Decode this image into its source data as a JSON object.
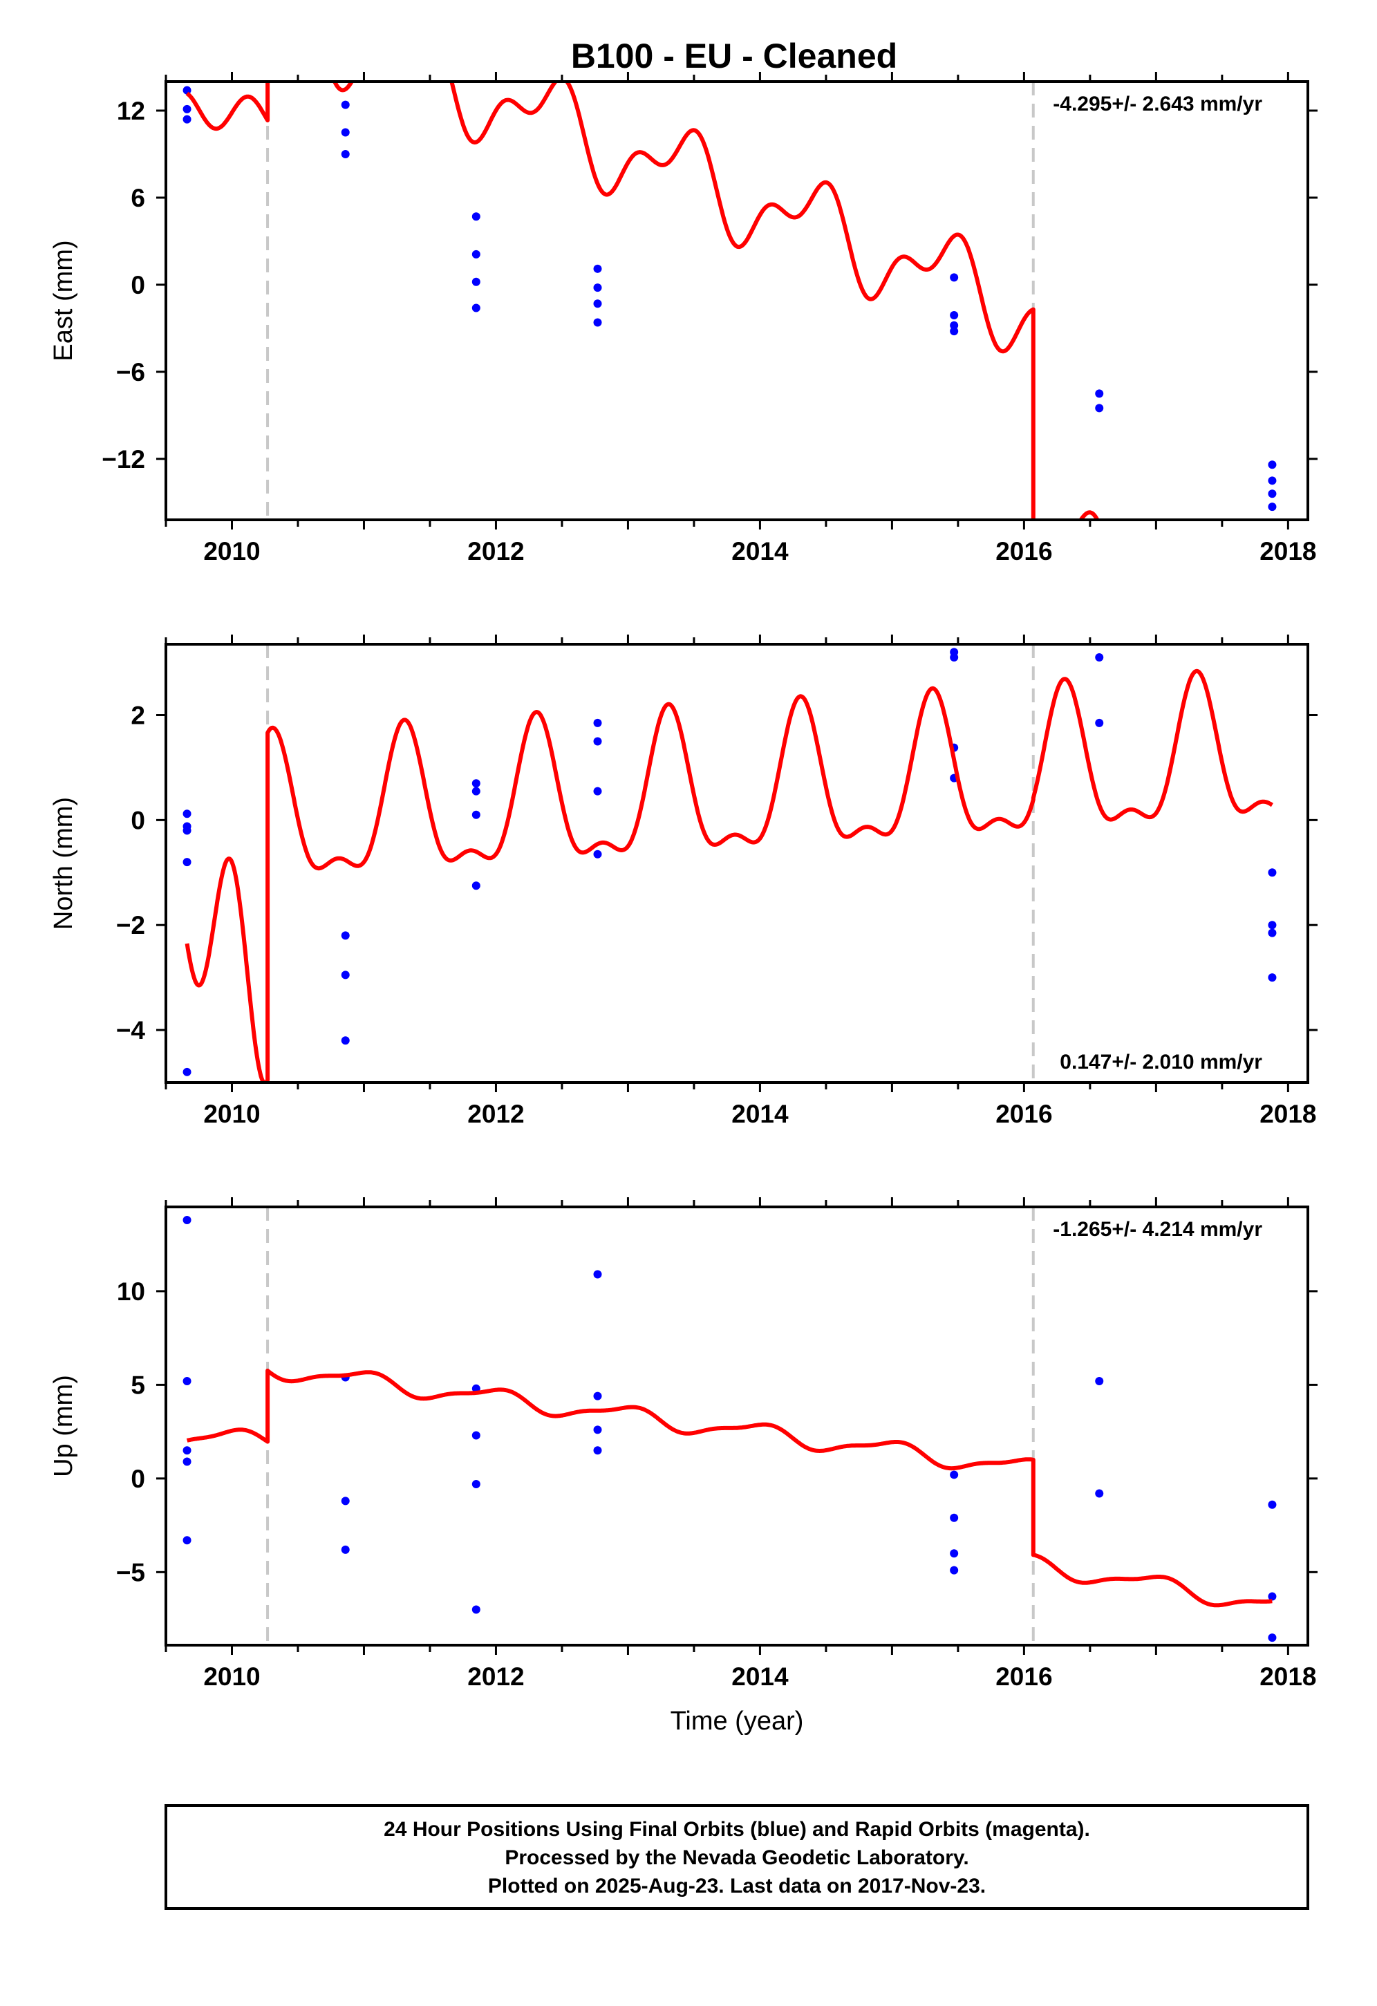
{
  "title": "B100  - EU - Cleaned",
  "caption": {
    "lines": [
      "24 Hour Positions Using Final Orbits (blue) and Rapid Orbits (magenta).",
      "Processed by the Nevada Geodetic Laboratory.",
      "Plotted on 2025-Aug-23. Last data on 2017-Nov-23."
    ]
  },
  "colors": {
    "model": "#ff0000",
    "final_orbits": "#0000ff",
    "event_line": "#c8c8c8",
    "frame": "#000000"
  },
  "chart_data": [
    {
      "type": "scatter",
      "ylabel": "East (mm)",
      "xlabel": "",
      "rate": "-4.295+/- 2.643 mm/yr",
      "rate_position": "top-right",
      "xlim": [
        2009.5,
        2018.15
      ],
      "ylim": [
        -16.2,
        14.0
      ],
      "x_ticks": [
        2010,
        2012,
        2014,
        2016,
        2018
      ],
      "x_tick_labels": [
        "2010",
        "2012",
        "2014",
        "2016",
        "2018"
      ],
      "y_ticks": [
        12,
        6,
        0,
        -6,
        -12
      ],
      "y_tick_labels": [
        "12",
        "6",
        "0",
        "−6",
        "−12"
      ],
      "grid": false,
      "event_lines": [
        2010.27,
        2016.07
      ],
      "points": [
        [
          2009.66,
          13.4
        ],
        [
          2009.66,
          12.1
        ],
        [
          2009.66,
          11.4
        ],
        [
          2010.86,
          12.4
        ],
        [
          2010.86,
          10.5
        ],
        [
          2010.86,
          9.0
        ],
        [
          2011.85,
          4.7
        ],
        [
          2011.85,
          2.1
        ],
        [
          2011.85,
          0.2
        ],
        [
          2011.85,
          -1.6
        ],
        [
          2012.77,
          1.1
        ],
        [
          2012.77,
          -0.2
        ],
        [
          2012.77,
          -1.3
        ],
        [
          2012.77,
          -2.6
        ],
        [
          2015.47,
          0.5
        ],
        [
          2015.47,
          -2.1
        ],
        [
          2015.47,
          -2.8
        ],
        [
          2015.47,
          -3.2
        ],
        [
          2016.57,
          -7.5
        ],
        [
          2016.57,
          -8.5
        ],
        [
          2017.88,
          -12.4
        ],
        [
          2017.88,
          -13.5
        ],
        [
          2017.88,
          -14.4
        ],
        [
          2017.88,
          -15.3
        ]
      ],
      "model": {
        "segments": [
          {
            "t0": 2009.66,
            "t1": 2010.27,
            "a": 11.86,
            "b": 0,
            "s1": -0.22,
            "c1": 0.0,
            "s2": 1.26,
            "c2": 0.0
          },
          {
            "t0": 2010.27,
            "t1": 2016.07,
            "a": 9.14,
            "b": -3.6,
            "s1": 1.3,
            "c1": -2.02,
            "s2": 0.86,
            "c2": 1.29
          },
          {
            "t0": 2016.07,
            "t1": 2017.88,
            "a": -6.4,
            "b": -3.6,
            "s1": 1.3,
            "c1": -2.02,
            "s2": 0.86,
            "c2": 1.29
          }
        ]
      }
    },
    {
      "type": "scatter",
      "ylabel": "North (mm)",
      "xlabel": "",
      "rate": "0.147+/- 2.010 mm/yr",
      "rate_position": "bottom-right",
      "xlim": [
        2009.5,
        2018.15
      ],
      "ylim": [
        -5.0,
        3.35
      ],
      "x_ticks": [
        2010,
        2012,
        2014,
        2016,
        2018
      ],
      "x_tick_labels": [
        "2010",
        "2012",
        "2014",
        "2016",
        "2018"
      ],
      "y_ticks": [
        2,
        0,
        -2,
        -4
      ],
      "y_tick_labels": [
        "2",
        "0",
        "−2",
        "−4"
      ],
      "grid": false,
      "event_lines": [
        2010.27,
        2016.07
      ],
      "points": [
        [
          2009.66,
          0.12
        ],
        [
          2009.66,
          -0.12
        ],
        [
          2009.66,
          -0.2
        ],
        [
          2009.66,
          -0.8
        ],
        [
          2009.66,
          -4.8
        ],
        [
          2010.86,
          -2.2
        ],
        [
          2010.86,
          -2.95
        ],
        [
          2010.86,
          -4.2
        ],
        [
          2011.85,
          0.7
        ],
        [
          2011.85,
          0.55
        ],
        [
          2011.85,
          0.1
        ],
        [
          2011.85,
          -1.25
        ],
        [
          2012.77,
          1.85
        ],
        [
          2012.77,
          1.5
        ],
        [
          2012.77,
          0.55
        ],
        [
          2012.77,
          -0.65
        ],
        [
          2015.47,
          3.2
        ],
        [
          2015.47,
          3.1
        ],
        [
          2015.47,
          1.38
        ],
        [
          2015.47,
          0.8
        ],
        [
          2016.57,
          3.1
        ],
        [
          2016.57,
          1.85
        ],
        [
          2017.88,
          -1.0
        ],
        [
          2017.88,
          -2.0
        ],
        [
          2017.88,
          -2.15
        ],
        [
          2017.88,
          -3.0
        ]
      ],
      "model": {
        "segments": [
          {
            "t0": 2009.66,
            "t1": 2010.27,
            "a": -2.44,
            "b": 0,
            "s1": -0.93,
            "c1": 0.0,
            "s2": 0.0,
            "c2": 1.64
          },
          {
            "t0": 2010.27,
            "t1": 2016.07,
            "a": 0.35,
            "b": 0.15,
            "s1": 1.2,
            "c1": -0.45,
            "s2": -0.35,
            "c2": -0.4
          },
          {
            "t0": 2016.07,
            "t1": 2017.88,
            "a": 0.38,
            "b": 0.15,
            "s1": 1.2,
            "c1": -0.45,
            "s2": -0.35,
            "c2": -0.4
          }
        ]
      }
    },
    {
      "type": "scatter",
      "ylabel": "Up (mm)",
      "xlabel": "Time (year)",
      "rate": "-1.265+/- 4.214 mm/yr",
      "rate_position": "top-right",
      "xlim": [
        2009.5,
        2018.15
      ],
      "ylim": [
        -8.9,
        14.5
      ],
      "x_ticks": [
        2010,
        2012,
        2014,
        2016,
        2018
      ],
      "x_tick_labels": [
        "2010",
        "2012",
        "2014",
        "2016",
        "2018"
      ],
      "y_ticks": [
        10,
        5,
        0,
        -5
      ],
      "y_tick_labels": [
        "10",
        "5",
        "0",
        "−5"
      ],
      "grid": false,
      "event_lines": [
        2010.27,
        2016.07
      ],
      "points": [
        [
          2009.66,
          13.8
        ],
        [
          2009.66,
          5.2
        ],
        [
          2009.66,
          1.5
        ],
        [
          2009.66,
          0.9
        ],
        [
          2009.66,
          -3.3
        ],
        [
          2010.86,
          5.4
        ],
        [
          2010.86,
          -1.2
        ],
        [
          2010.86,
          -3.8
        ],
        [
          2011.85,
          4.8
        ],
        [
          2011.85,
          2.3
        ],
        [
          2011.85,
          -0.3
        ],
        [
          2011.85,
          -7.0
        ],
        [
          2012.77,
          10.9
        ],
        [
          2012.77,
          4.4
        ],
        [
          2012.77,
          2.6
        ],
        [
          2012.77,
          1.5
        ],
        [
          2015.47,
          0.2
        ],
        [
          2015.47,
          -2.1
        ],
        [
          2015.47,
          -4.0
        ],
        [
          2015.47,
          -4.9
        ],
        [
          2016.57,
          5.2
        ],
        [
          2016.57,
          -0.8
        ],
        [
          2017.88,
          -1.4
        ],
        [
          2017.88,
          -6.3
        ],
        [
          2017.88,
          -8.5
        ]
      ],
      "model": {
        "segments": [
          {
            "t0": 2009.66,
            "t1": 2010.27,
            "a": 2.1,
            "b": 0,
            "s1": -0.04,
            "c1": 0.45,
            "s2": 0.15,
            "c2": 0.0
          },
          {
            "t0": 2010.27,
            "t1": 2016.07,
            "a": 3.35,
            "b": -0.93,
            "s1": -0.04,
            "c1": 0.45,
            "s2": 0.15,
            "c2": 0.0
          },
          {
            "t0": 2016.07,
            "t1": 2017.88,
            "a": -0.9,
            "b": -1.2,
            "s1": -0.04,
            "c1": 0.45,
            "s2": 0.15,
            "c2": 0.0
          }
        ]
      }
    }
  ]
}
